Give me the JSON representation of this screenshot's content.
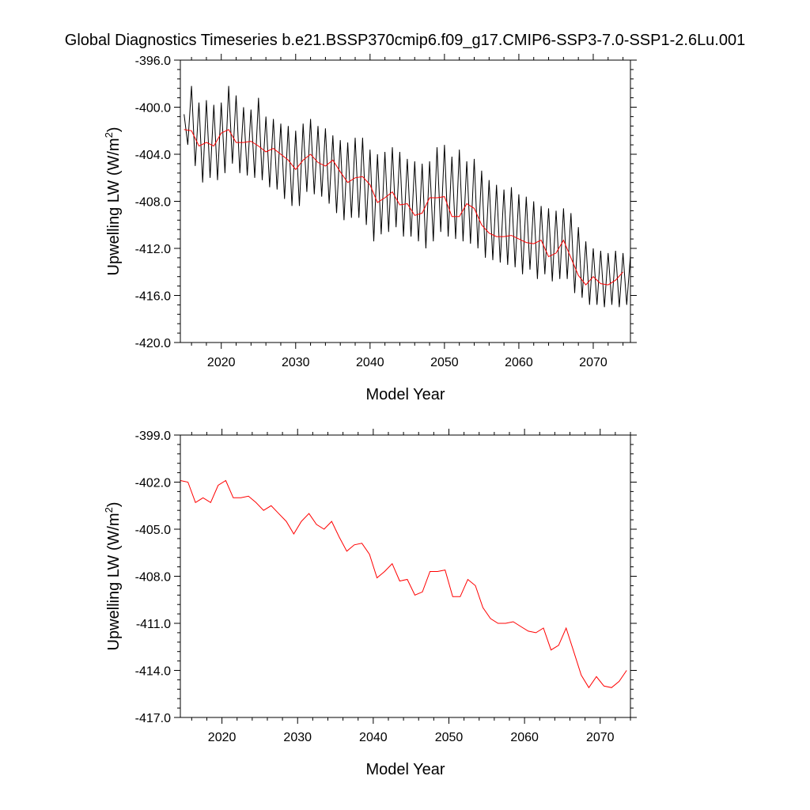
{
  "title": "Global Diagnostics Timeseries b.e21.BSSP370cmip6.f09_g17.CMIP6-SSP3-7.0-SSP1-2.6Lu.001",
  "colors": {
    "monthly": "#000000",
    "annual": "#ff0000",
    "frame": "#000000"
  },
  "chart_data": [
    {
      "type": "line",
      "xlabel": "Model Year",
      "ylabel": "Upwelling LW (W/m",
      "ylabel_superscript": "2",
      "ylabel_suffix": ")",
      "xlim": [
        2014.5,
        2075.0
      ],
      "ylim": [
        -420.0,
        -396.0
      ],
      "xticks": [
        2020,
        2030,
        2040,
        2050,
        2060,
        2070
      ],
      "xtick_labels": [
        "2020",
        "2030",
        "2040",
        "2050",
        "2060",
        "2070"
      ],
      "yticks": [
        -396.0,
        -400.0,
        -404.0,
        -408.0,
        -412.0,
        -416.0,
        -420.0
      ],
      "ytick_labels": [
        "-396.0",
        "-400.0",
        "-404.0",
        "-408.0",
        "-412.0",
        "-416.0",
        "-420.0"
      ],
      "grid": false,
      "series": [
        {
          "role": "monthly",
          "color": "#000000",
          "x": [
            2015.0,
            2015.5,
            2016.0,
            2016.5,
            2017.0,
            2017.5,
            2018.0,
            2018.5,
            2019.0,
            2019.5,
            2020.0,
            2020.5,
            2021.0,
            2021.5,
            2022.0,
            2022.5,
            2023.0,
            2023.5,
            2024.0,
            2024.5,
            2025.0,
            2025.5,
            2026.0,
            2026.5,
            2027.0,
            2027.5,
            2028.0,
            2028.5,
            2029.0,
            2029.5,
            2030.0,
            2030.5,
            2031.0,
            2031.5,
            2032.0,
            2032.5,
            2033.0,
            2033.5,
            2034.0,
            2034.5,
            2035.0,
            2035.5,
            2036.0,
            2036.5,
            2037.0,
            2037.5,
            2038.0,
            2038.5,
            2039.0,
            2039.5,
            2040.0,
            2040.5,
            2041.0,
            2041.5,
            2042.0,
            2042.5,
            2043.0,
            2043.5,
            2044.0,
            2044.5,
            2045.0,
            2045.5,
            2046.0,
            2046.5,
            2047.0,
            2047.5,
            2048.0,
            2048.5,
            2049.0,
            2049.5,
            2050.0,
            2050.5,
            2051.0,
            2051.5,
            2052.0,
            2052.5,
            2053.0,
            2053.5,
            2054.0,
            2054.5,
            2055.0,
            2055.5,
            2056.0,
            2056.5,
            2057.0,
            2057.5,
            2058.0,
            2058.5,
            2059.0,
            2059.5,
            2060.0,
            2060.5,
            2061.0,
            2061.5,
            2062.0,
            2062.5,
            2063.0,
            2063.5,
            2064.0,
            2064.5,
            2065.0,
            2065.5,
            2066.0,
            2066.5,
            2067.0,
            2067.5,
            2068.0,
            2068.5,
            2069.0,
            2069.5,
            2070.0,
            2070.5,
            2071.0,
            2071.5,
            2072.0,
            2072.5,
            2073.0,
            2073.5,
            2074.0,
            2074.5,
            2075.0
          ],
          "y": [
            -400.6,
            -403.2,
            -398.2,
            -405.0,
            -399.6,
            -406.4,
            -399.4,
            -406.0,
            -399.8,
            -406.2,
            -399.6,
            -405.6,
            -398.2,
            -404.8,
            -399.0,
            -405.6,
            -400.0,
            -405.8,
            -400.2,
            -406.0,
            -399.2,
            -406.2,
            -400.8,
            -406.8,
            -401.0,
            -407.0,
            -401.4,
            -407.8,
            -401.6,
            -408.4,
            -402.0,
            -408.4,
            -401.4,
            -407.2,
            -401.0,
            -407.4,
            -401.6,
            -407.6,
            -401.8,
            -408.2,
            -402.4,
            -409.0,
            -402.8,
            -409.6,
            -403.0,
            -409.4,
            -402.6,
            -409.4,
            -402.6,
            -410.0,
            -403.6,
            -411.4,
            -404.0,
            -410.8,
            -403.8,
            -410.6,
            -403.4,
            -410.2,
            -403.8,
            -411.0,
            -404.4,
            -411.0,
            -404.6,
            -411.4,
            -404.8,
            -412.0,
            -404.6,
            -411.4,
            -403.4,
            -410.6,
            -403.2,
            -411.0,
            -404.2,
            -411.2,
            -403.6,
            -411.4,
            -404.6,
            -411.6,
            -404.4,
            -412.0,
            -405.4,
            -412.8,
            -406.2,
            -413.0,
            -406.6,
            -413.2,
            -407.0,
            -413.4,
            -406.8,
            -413.6,
            -407.4,
            -414.2,
            -407.6,
            -413.8,
            -408.0,
            -414.6,
            -408.4,
            -414.2,
            -408.6,
            -414.8,
            -408.8,
            -414.6,
            -408.6,
            -414.6,
            -409.0,
            -415.8,
            -410.2,
            -416.2,
            -411.4,
            -416.8,
            -412.0,
            -416.8,
            -412.2,
            -417.0,
            -412.4,
            -416.8,
            -412.2,
            -417.0,
            -412.4,
            -416.8,
            -412.6
          ]
        },
        {
          "role": "annual",
          "color": "#ff0000",
          "x": [
            2015.0,
            2016.0,
            2017.0,
            2018.0,
            2019.0,
            2020.0,
            2021.0,
            2022.0,
            2023.0,
            2024.0,
            2025.0,
            2026.0,
            2027.0,
            2028.0,
            2029.0,
            2030.0,
            2031.0,
            2032.0,
            2033.0,
            2034.0,
            2035.0,
            2036.0,
            2037.0,
            2038.0,
            2039.0,
            2040.0,
            2041.0,
            2042.0,
            2043.0,
            2044.0,
            2045.0,
            2046.0,
            2047.0,
            2048.0,
            2049.0,
            2050.0,
            2051.0,
            2052.0,
            2053.0,
            2054.0,
            2055.0,
            2056.0,
            2057.0,
            2058.0,
            2059.0,
            2060.0,
            2061.0,
            2062.0,
            2063.0,
            2064.0,
            2065.0,
            2066.0,
            2067.0,
            2068.0,
            2069.0,
            2070.0,
            2071.0,
            2072.0,
            2073.0,
            2074.0
          ],
          "y": [
            -401.9,
            -402.0,
            -403.3,
            -403.0,
            -403.3,
            -402.2,
            -401.9,
            -403.0,
            -403.0,
            -402.9,
            -403.3,
            -403.8,
            -403.5,
            -404.0,
            -404.5,
            -405.3,
            -404.5,
            -404.0,
            -404.7,
            -405.0,
            -404.5,
            -405.5,
            -406.4,
            -406.0,
            -405.9,
            -406.6,
            -408.1,
            -407.7,
            -407.2,
            -408.3,
            -408.2,
            -409.2,
            -409.0,
            -407.7,
            -407.7,
            -407.6,
            -409.3,
            -409.3,
            -408.2,
            -408.6,
            -410.0,
            -410.7,
            -411.0,
            -411.0,
            -410.9,
            -411.2,
            -411.5,
            -411.6,
            -411.3,
            -412.7,
            -412.4,
            -411.3,
            -412.8,
            -414.3,
            -415.1,
            -414.4,
            -415.0,
            -415.1,
            -414.7,
            -414.0
          ]
        }
      ]
    },
    {
      "type": "line",
      "xlabel": "Model Year",
      "ylabel": "Upwelling LW (W/m",
      "ylabel_superscript": "2",
      "ylabel_suffix": ")",
      "xlim": [
        2014.5,
        2074.0
      ],
      "ylim": [
        -417.0,
        -399.0
      ],
      "xticks": [
        2020,
        2030,
        2040,
        2050,
        2060,
        2070
      ],
      "xtick_labels": [
        "2020",
        "2030",
        "2040",
        "2050",
        "2060",
        "2070"
      ],
      "yticks": [
        -399.0,
        -402.0,
        -405.0,
        -408.0,
        -411.0,
        -414.0,
        -417.0
      ],
      "ytick_labels": [
        "-399.0",
        "-402.0",
        "-405.0",
        "-408.0",
        "-411.0",
        "-414.0",
        "-417.0"
      ],
      "grid": false,
      "series": [
        {
          "role": "annual",
          "color": "#ff0000",
          "x": [
            2014.5,
            2015.5,
            2016.5,
            2017.5,
            2018.5,
            2019.5,
            2020.5,
            2021.5,
            2022.5,
            2023.5,
            2024.5,
            2025.5,
            2026.5,
            2027.5,
            2028.5,
            2029.5,
            2030.5,
            2031.5,
            2032.5,
            2033.5,
            2034.5,
            2035.5,
            2036.5,
            2037.5,
            2038.5,
            2039.5,
            2040.5,
            2041.5,
            2042.5,
            2043.5,
            2044.5,
            2045.5,
            2046.5,
            2047.5,
            2048.5,
            2049.5,
            2050.5,
            2051.5,
            2052.5,
            2053.5,
            2054.5,
            2055.5,
            2056.5,
            2057.5,
            2058.5,
            2059.5,
            2060.5,
            2061.5,
            2062.5,
            2063.5,
            2064.5,
            2065.5,
            2066.5,
            2067.5,
            2068.5,
            2069.5,
            2070.5,
            2071.5,
            2072.5,
            2073.5
          ],
          "y": [
            -401.9,
            -402.0,
            -403.3,
            -403.0,
            -403.3,
            -402.2,
            -401.9,
            -403.0,
            -403.0,
            -402.9,
            -403.3,
            -403.8,
            -403.5,
            -404.0,
            -404.5,
            -405.3,
            -404.5,
            -404.0,
            -404.7,
            -405.0,
            -404.5,
            -405.5,
            -406.4,
            -406.0,
            -405.9,
            -406.6,
            -408.1,
            -407.7,
            -407.2,
            -408.3,
            -408.2,
            -409.2,
            -409.0,
            -407.7,
            -407.7,
            -407.6,
            -409.3,
            -409.3,
            -408.2,
            -408.6,
            -410.0,
            -410.7,
            -411.0,
            -411.0,
            -410.9,
            -411.2,
            -411.5,
            -411.6,
            -411.3,
            -412.7,
            -412.4,
            -411.3,
            -412.8,
            -414.3,
            -415.1,
            -414.4,
            -415.0,
            -415.1,
            -414.7,
            -414.0
          ]
        }
      ]
    }
  ]
}
